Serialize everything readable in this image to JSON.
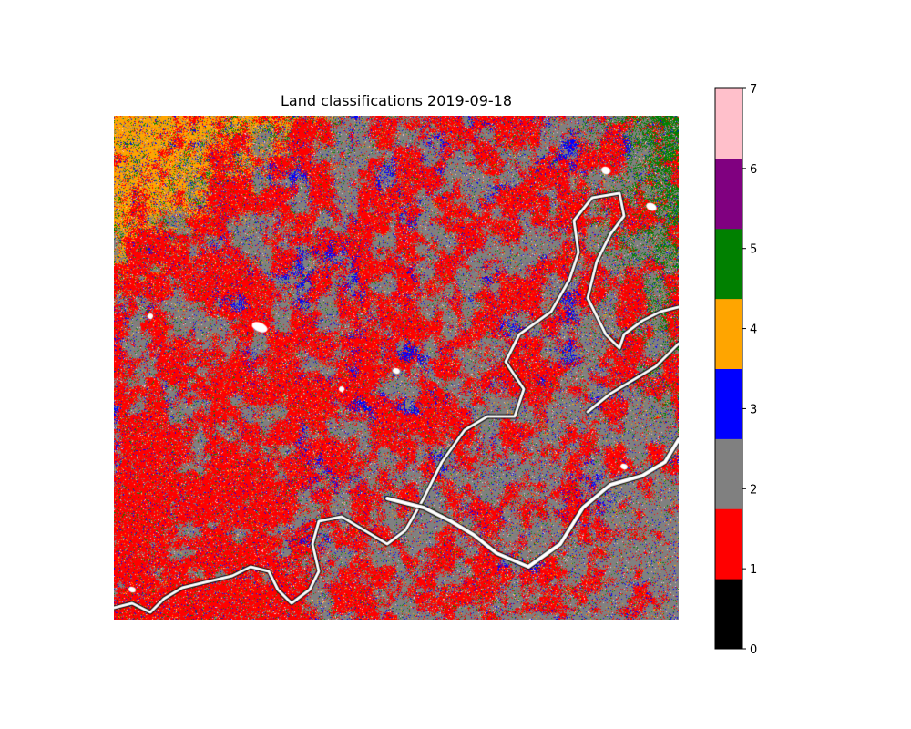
{
  "chart_data": {
    "type": "heatmap",
    "title": "Land classifications 2019-09-18",
    "colorbar": {
      "range": [
        0,
        7
      ],
      "ticks": [
        0,
        1,
        2,
        3,
        4,
        5,
        6,
        7
      ],
      "classes": [
        {
          "value": 0,
          "color": "#000000"
        },
        {
          "value": 1,
          "color": "#ff0000"
        },
        {
          "value": 2,
          "color": "#808080"
        },
        {
          "value": 3,
          "color": "#0000ff"
        },
        {
          "value": 4,
          "color": "#ffa500"
        },
        {
          "value": 5,
          "color": "#008000"
        },
        {
          "value": 6,
          "color": "#800080"
        },
        {
          "value": 7,
          "color": "#ffc0cb"
        }
      ],
      "no_data_color": "#ffffff"
    },
    "axes": "off"
  }
}
